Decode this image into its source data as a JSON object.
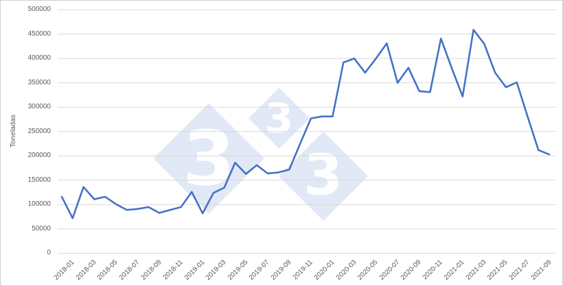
{
  "chart_data": {
    "type": "line",
    "title": "",
    "xlabel": "",
    "ylabel": "Toneladas",
    "ylim": [
      0,
      500000
    ],
    "ytick_step": 50000,
    "yticks": [
      "0",
      "50000",
      "100000",
      "150000",
      "200000",
      "250000",
      "300000",
      "350000",
      "400000",
      "450000",
      "500000"
    ],
    "xtick_labels": [
      "2018-01",
      "2018-03",
      "2018-05",
      "2018-07",
      "2018-09",
      "2018-11",
      "2019-01",
      "2019-03",
      "2019-05",
      "2019-07",
      "2019-09",
      "2019-11",
      "2020-01",
      "2020-03",
      "2020-05",
      "2020-07",
      "2020-09",
      "2020-11",
      "2021-01",
      "2021-03",
      "2021-05",
      "2021-07",
      "2021-09"
    ],
    "x": [
      "2018-01",
      "2018-02",
      "2018-03",
      "2018-04",
      "2018-05",
      "2018-06",
      "2018-07",
      "2018-08",
      "2018-09",
      "2018-10",
      "2018-11",
      "2018-12",
      "2019-01",
      "2019-02",
      "2019-03",
      "2019-04",
      "2019-05",
      "2019-06",
      "2019-07",
      "2019-08",
      "2019-09",
      "2019-10",
      "2019-11",
      "2019-12",
      "2020-01",
      "2020-02",
      "2020-03",
      "2020-04",
      "2020-05",
      "2020-06",
      "2020-07",
      "2020-08",
      "2020-09",
      "2020-10",
      "2020-11",
      "2020-12",
      "2021-01",
      "2021-02",
      "2021-03",
      "2021-04",
      "2021-05",
      "2021-06",
      "2021-07",
      "2021-08",
      "2021-09",
      "2021-10"
    ],
    "series": [
      {
        "name": "Toneladas",
        "values": [
          116000,
          72000,
          136000,
          111000,
          116000,
          101000,
          89000,
          91000,
          95000,
          83000,
          89000,
          95000,
          126000,
          82000,
          124000,
          135000,
          186000,
          163000,
          181000,
          164000,
          166000,
          172000,
          225000,
          277000,
          281000,
          281000,
          392000,
          400000,
          371000,
          400000,
          431000,
          350000,
          381000,
          333000,
          331000,
          441000,
          380000,
          322000,
          459000,
          430000,
          371000,
          341000,
          351000,
          281000,
          212000,
          203000
        ]
      }
    ],
    "grid": true,
    "legend": "none",
    "line_color": "#4472C4",
    "grid_color": "#D9D9D9",
    "label_color": "#595959"
  },
  "watermark": {
    "threes": [
      "3",
      "3",
      "3"
    ],
    "color_hint": "#E1E8F5"
  }
}
